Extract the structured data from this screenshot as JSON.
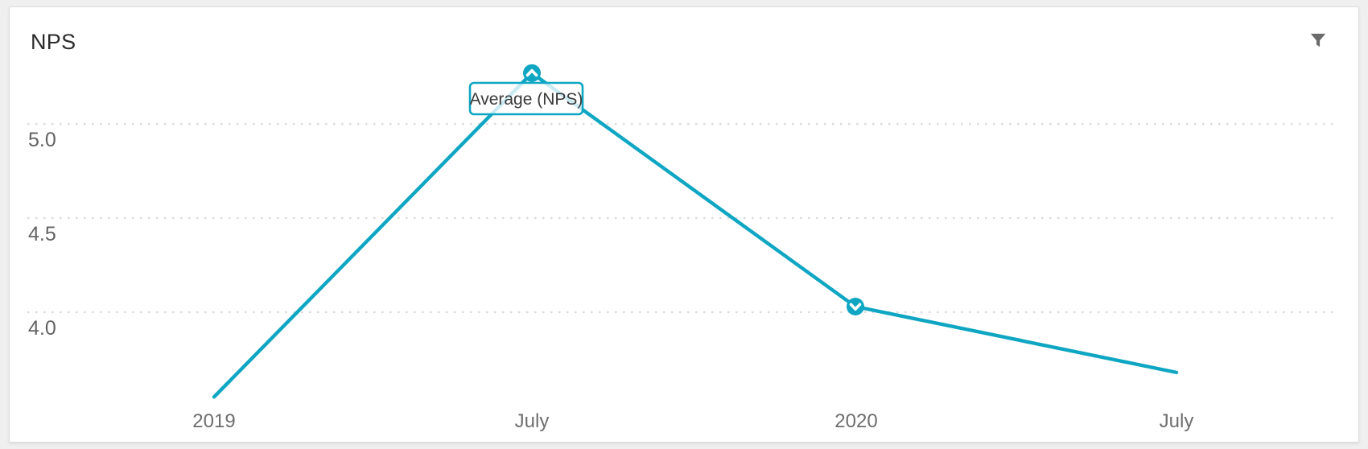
{
  "header": {
    "title": "NPS"
  },
  "toolbar": {
    "filter_icon": "funnel-filter-icon"
  },
  "tooltip": {
    "label": "Average (NPS)"
  },
  "colors": {
    "accent_teal": "#0ea6c2",
    "grid_gray": "#dbdbdb",
    "axis_text": "#6e6e6e",
    "title_text": "#2b2b2b",
    "icon_gray": "#6b6b6b",
    "card_bg": "#ffffff",
    "page_bg": "#efefef"
  },
  "chart_data": {
    "type": "line",
    "title": "NPS",
    "categories": [
      "2019",
      "July",
      "2020",
      "July"
    ],
    "series": [
      {
        "name": "Average (NPS)",
        "values": [
          3.55,
          5.27,
          4.03,
          3.68
        ]
      }
    ],
    "yticks": [
      5.0,
      4.5,
      4.0
    ],
    "ytick_labels": [
      "5.0",
      "4.5",
      "4.0"
    ],
    "ylim": [
      3.35,
      5.45
    ],
    "xlabel": "",
    "ylabel": "",
    "grid": "horizontal-dotted",
    "legend_position": "tooltip-above-peak",
    "line_color": "#0ea6c2",
    "markers": [
      {
        "index": 1,
        "direction": "up"
      },
      {
        "index": 2,
        "direction": "down"
      }
    ]
  }
}
